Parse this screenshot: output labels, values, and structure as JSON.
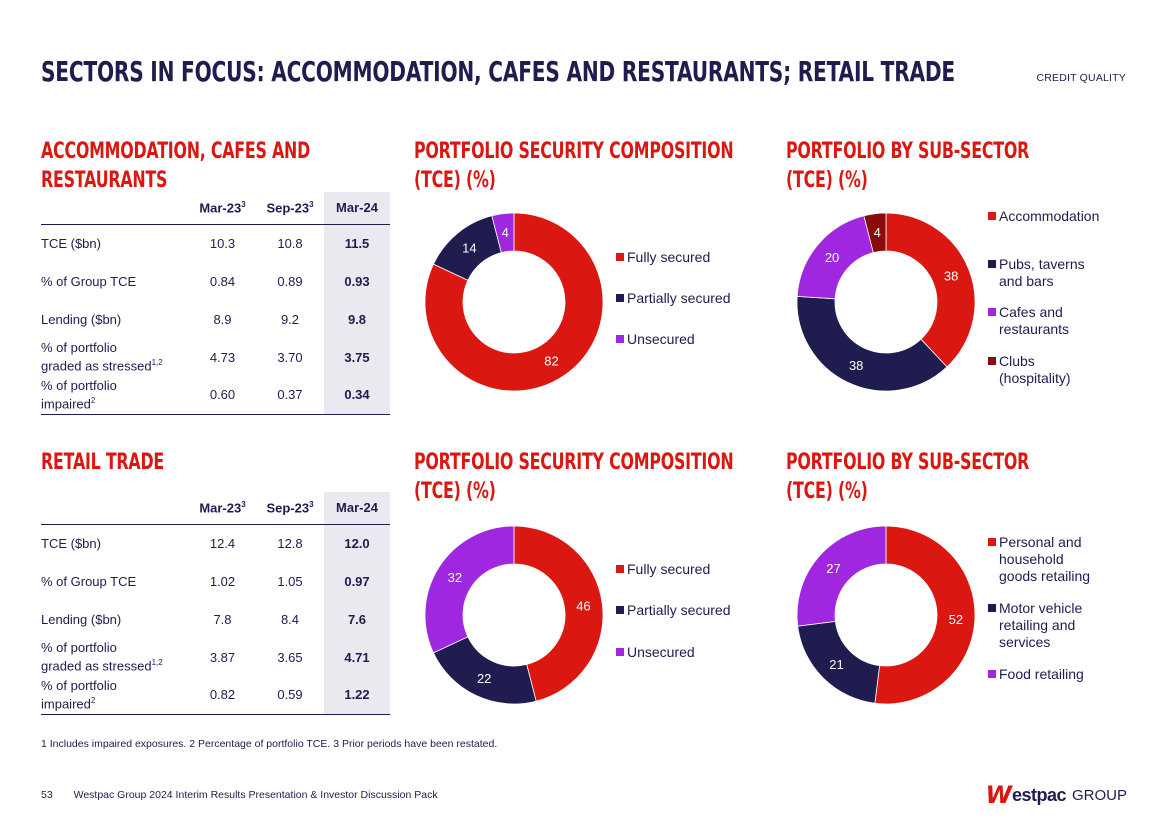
{
  "header": {
    "title": "SECTORS IN FOCUS: ACCOMMODATION, CAFES AND RESTAURANTS; RETAIL TRADE",
    "section": "CREDIT QUALITY"
  },
  "acr": {
    "title_line1": "ACCOMMODATION, CAFES AND",
    "title_line2": "RESTAURANTS",
    "columns": [
      "Mar-23",
      "Sep-23",
      "Mar-24"
    ],
    "col_sup": [
      "3",
      "3",
      ""
    ],
    "rows": [
      {
        "label": "TCE ($bn)",
        "sup": "",
        "values": [
          "10.3",
          "10.8",
          "11.5"
        ]
      },
      {
        "label": "% of Group TCE",
        "sup": "",
        "values": [
          "0.84",
          "0.89",
          "0.93"
        ]
      },
      {
        "label": "Lending ($bn)",
        "sup": "",
        "values": [
          "8.9",
          "9.2",
          "9.8"
        ]
      },
      {
        "label_line1": "% of portfolio",
        "label_line2": "graded as stressed",
        "sup": "1,2",
        "values": [
          "4.73",
          "3.70",
          "3.75"
        ]
      },
      {
        "label_line1": "% of portfolio",
        "label_line2": "impaired",
        "sup": "2",
        "values": [
          "0.60",
          "0.37",
          "0.34"
        ]
      }
    ]
  },
  "retail": {
    "title": "RETAIL TRADE",
    "columns": [
      "Mar-23",
      "Sep-23",
      "Mar-24"
    ],
    "col_sup": [
      "3",
      "3",
      ""
    ],
    "rows": [
      {
        "label": "TCE ($bn)",
        "sup": "",
        "values": [
          "12.4",
          "12.8",
          "12.0"
        ]
      },
      {
        "label": "% of Group TCE",
        "sup": "",
        "values": [
          "1.02",
          "1.05",
          "0.97"
        ]
      },
      {
        "label": "Lending ($bn)",
        "sup": "",
        "values": [
          "7.8",
          "8.4",
          "7.6"
        ]
      },
      {
        "label_line1": "% of portfolio",
        "label_line2": "graded as stressed",
        "sup": "1,2",
        "values": [
          "3.87",
          "3.65",
          "4.71"
        ]
      },
      {
        "label_line1": "% of portfolio",
        "label_line2": "impaired",
        "sup": "2",
        "values": [
          "0.82",
          "0.59",
          "1.22"
        ]
      }
    ]
  },
  "chart_titles": {
    "acr_security": [
      "PORTFOLIO SECURITY COMPOSITION",
      "(TCE) (%)"
    ],
    "acr_subsector": [
      "PORTFOLIO BY SUB-SECTOR",
      "(TCE) (%)"
    ],
    "retail_security": [
      "PORTFOLIO  SECURITY COMPOSITION",
      "(TCE) (%)"
    ],
    "retail_subsector": [
      "PORTFOLIO BY SUB-SECTOR",
      "(TCE) (%)"
    ]
  },
  "chart_data": [
    {
      "type": "pie",
      "title": "PORTFOLIO SECURITY COMPOSITION (TCE) (%)",
      "categories": [
        "Fully secured",
        "Partially secured",
        "Unsecured"
      ],
      "legend_lines": [
        [
          "Fully secured"
        ],
        [
          "Partially secured"
        ],
        [
          "Unsecured"
        ]
      ],
      "values": [
        82,
        14,
        4
      ],
      "colors": [
        "#da1710",
        "#1f1c4f",
        "#a027e0"
      ]
    },
    {
      "type": "pie",
      "title": "PORTFOLIO BY SUB-SECTOR (TCE) (%)",
      "categories": [
        "Accommodation",
        "Pubs, taverns and bars",
        "Cafes and restaurants",
        "Clubs (hospitality)"
      ],
      "legend_lines": [
        [
          "Accommodation"
        ],
        [
          "Pubs, taverns",
          "and bars"
        ],
        [
          "Cafes and",
          "restaurants"
        ],
        [
          "Clubs",
          "(hospitality)"
        ]
      ],
      "values": [
        38,
        38,
        20,
        4
      ],
      "colors": [
        "#da1710",
        "#1f1c4f",
        "#a027e0",
        "#8b0a0a"
      ]
    },
    {
      "type": "pie",
      "title": "PORTFOLIO  SECURITY COMPOSITION (TCE) (%)",
      "categories": [
        "Fully secured",
        "Partially secured",
        "Unsecured"
      ],
      "legend_lines": [
        [
          "Fully secured"
        ],
        [
          "Partially secured"
        ],
        [
          "Unsecured"
        ]
      ],
      "values": [
        46,
        22,
        32
      ],
      "colors": [
        "#da1710",
        "#1f1c4f",
        "#a027e0"
      ]
    },
    {
      "type": "pie",
      "title": "PORTFOLIO BY SUB-SECTOR (TCE) (%)",
      "categories": [
        "Personal and household goods retailing",
        "Motor vehicle retailing and services",
        "Food retailing"
      ],
      "legend_lines": [
        [
          "Personal and",
          "household",
          "goods retailing"
        ],
        [
          "Motor vehicle",
          "retailing and",
          "services"
        ],
        [
          "Food retailing"
        ]
      ],
      "values": [
        52,
        21,
        27
      ],
      "colors": [
        "#da1710",
        "#1f1c4f",
        "#a027e0"
      ]
    }
  ],
  "footnote": "1 Includes impaired exposures. 2 Percentage of portfolio TCE. 3 Prior periods have been restated.",
  "footer": {
    "page": "53",
    "text": "Westpac Group 2024 Interim Results Presentation & Investor Discussion Pack",
    "logo_mark": "W",
    "logo_name": "estpac",
    "logo_group": "GROUP"
  }
}
